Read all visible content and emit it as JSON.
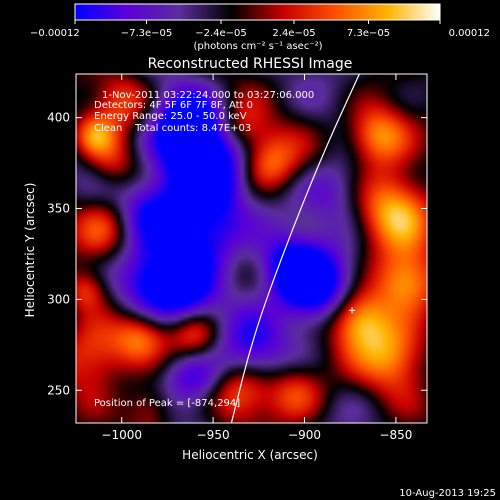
{
  "chart_data": {
    "type": "heatmap",
    "title": "Reconstructed RHESSI Image",
    "xlabel": "Heliocentric X (arcsec)",
    "ylabel": "Heliocentric Y (arcsec)",
    "xlim": [
      -1025,
      -833
    ],
    "ylim": [
      232,
      424
    ],
    "xticks": [
      -1000,
      -950,
      -900,
      -850
    ],
    "xtick_labels": [
      "−1000",
      "−950",
      "−900",
      "−850"
    ],
    "yticks": [
      250,
      300,
      350,
      400
    ],
    "ytick_labels": [
      "250",
      "300",
      "350",
      "400"
    ],
    "colorbar": {
      "min": -0.00012,
      "max": 0.00012,
      "ticks": [
        -0.00012,
        -7.3e-05,
        -2.4e-05,
        2.4e-05,
        7.3e-05,
        0.00012
      ],
      "tick_labels": [
        "−0.00012",
        "−7.3e−05",
        "−2.4e−05",
        "2.4e−05",
        "7.3e−05",
        "0.00012"
      ],
      "unit_label": "(photons cm⁻² s⁻¹ asec⁻²)",
      "palette": [
        "#0000ff",
        "#5a00d8",
        "#5a2e9c",
        "#000000",
        "#c80000",
        "#ff5000",
        "#ffb400",
        "#ffffff"
      ]
    },
    "annotations": [
      "1-Nov-2011 03:22:24.000 to 03:27:06.000",
      "Detectors: 4F 5F 6F 7F 8F, Att 0",
      "Energy Range: 25.0 - 50.0 keV",
      "Clean    Total counts: 8.47E+03"
    ],
    "peak_label": "Position of Peak = [-874,294]",
    "peak": [
      -874,
      294
    ],
    "limb_curve": [
      [
        -940,
        232
      ],
      [
        -928,
        280
      ],
      [
        -910,
        330
      ],
      [
        -890,
        380
      ],
      [
        -870,
        424
      ]
    ],
    "blobs": [
      {
        "x": -955,
        "y": 370,
        "v": -1.0,
        "s": 18
      },
      {
        "x": -965,
        "y": 395,
        "v": -0.8,
        "s": 14
      },
      {
        "x": -955,
        "y": 335,
        "v": -0.7,
        "s": 15
      },
      {
        "x": -985,
        "y": 310,
        "v": -0.8,
        "s": 14
      },
      {
        "x": -965,
        "y": 300,
        "v": -0.6,
        "s": 12
      },
      {
        "x": -895,
        "y": 305,
        "v": -1.0,
        "s": 15
      },
      {
        "x": -910,
        "y": 320,
        "v": -0.6,
        "s": 12
      },
      {
        "x": -930,
        "y": 270,
        "v": -0.6,
        "s": 14
      },
      {
        "x": -960,
        "y": 255,
        "v": -0.6,
        "s": 12
      },
      {
        "x": -985,
        "y": 350,
        "v": -0.5,
        "s": 12
      },
      {
        "x": -880,
        "y": 360,
        "v": -0.5,
        "s": 14
      },
      {
        "x": -1010,
        "y": 340,
        "v": 0.5,
        "s": 12
      },
      {
        "x": -1015,
        "y": 270,
        "v": 0.7,
        "s": 14
      },
      {
        "x": -1000,
        "y": 410,
        "v": 0.5,
        "s": 12
      },
      {
        "x": -1005,
        "y": 375,
        "v": 0.4,
        "s": 10
      },
      {
        "x": -920,
        "y": 375,
        "v": 0.8,
        "s": 12
      },
      {
        "x": -935,
        "y": 395,
        "v": 0.5,
        "s": 10
      },
      {
        "x": -850,
        "y": 350,
        "v": 0.9,
        "s": 16
      },
      {
        "x": -860,
        "y": 390,
        "v": 0.9,
        "s": 12
      },
      {
        "x": -845,
        "y": 310,
        "v": 0.8,
        "s": 12
      },
      {
        "x": -870,
        "y": 290,
        "v": 1.0,
        "s": 12
      },
      {
        "x": -850,
        "y": 270,
        "v": 0.8,
        "s": 14
      },
      {
        "x": -990,
        "y": 280,
        "v": 0.6,
        "s": 10
      },
      {
        "x": -960,
        "y": 280,
        "v": 0.6,
        "s": 10
      },
      {
        "x": -935,
        "y": 250,
        "v": 0.7,
        "s": 12
      },
      {
        "x": -905,
        "y": 250,
        "v": 0.6,
        "s": 12
      },
      {
        "x": -1020,
        "y": 305,
        "v": 0.5,
        "s": 8
      },
      {
        "x": -1015,
        "y": 390,
        "v": 0.6,
        "s": 8
      },
      {
        "x": -985,
        "y": 240,
        "v": 0.5,
        "s": 10
      }
    ]
  },
  "footer": {
    "timestamp": "10-Aug-2013 19:25"
  }
}
